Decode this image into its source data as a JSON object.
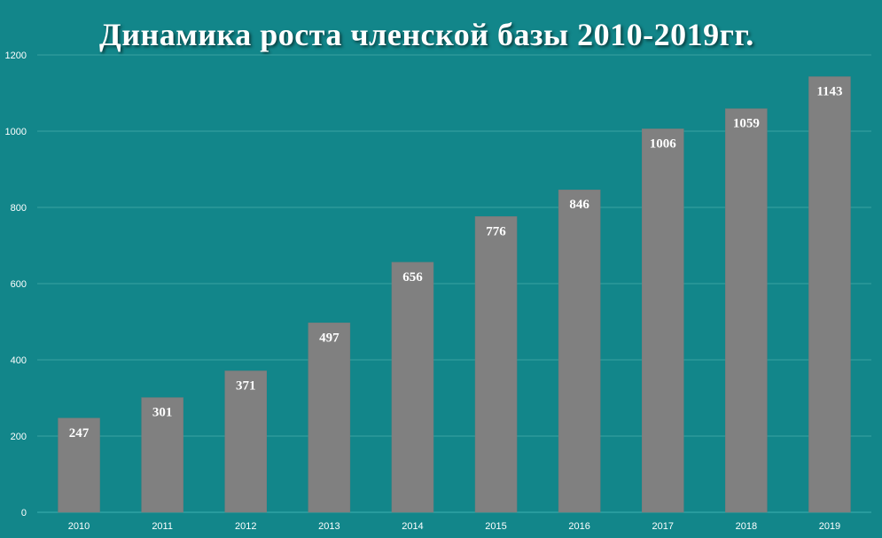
{
  "chart_data": {
    "type": "bar",
    "title": "Динамика роста членской базы 2010-2019гг.",
    "categories": [
      "2010",
      "2011",
      "2012",
      "2013",
      "2014",
      "2015",
      "2016",
      "2017",
      "2018",
      "2019"
    ],
    "values": [
      247,
      301,
      371,
      497,
      656,
      776,
      846,
      1006,
      1059,
      1143
    ],
    "ylim": [
      0,
      1200
    ],
    "yticks": [
      0,
      200,
      400,
      600,
      800,
      1000,
      1200
    ],
    "grid": true,
    "legend": "none",
    "data_labels": true,
    "colors": {
      "background": "#12868a",
      "bar": "#808080",
      "text": "#ffffff"
    }
  }
}
